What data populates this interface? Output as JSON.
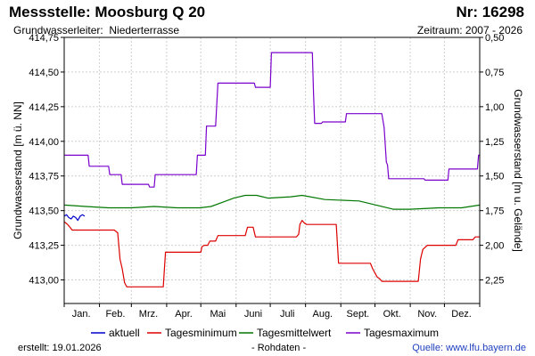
{
  "header": {
    "title": "Messstelle: Moosburg Q 20",
    "number": "Nr: 16298",
    "aquifer_label": "Grundwasserleiter:",
    "aquifer_value": "Niederterrasse",
    "period": "Zeitraum: 2007 - 2026"
  },
  "footer": {
    "created": "erstellt:  19.01.2026",
    "rawdata": "- Rohdaten -",
    "source_label": "Quelle:",
    "source_url": "www.lfu.bayern.de"
  },
  "chart_data": {
    "type": "line",
    "title": "",
    "xlabel": "",
    "ylabel": "Grundwasserstand [m ü. NN]",
    "ylabel_right": "Grundwasserstand [m u. Gelände]",
    "x_unit": "day of year",
    "xlim": [
      1,
      366
    ],
    "ylim": [
      412.83,
      414.75
    ],
    "ylim_right": [
      2.42,
      0.5
    ],
    "x_ticks": [
      {
        "label": "Jan.",
        "x": 16
      },
      {
        "label": "Feb.",
        "x": 46
      },
      {
        "label": "Mrz.",
        "x": 75
      },
      {
        "label": "Apr.",
        "x": 106
      },
      {
        "label": "Mai",
        "x": 136
      },
      {
        "label": "Juni",
        "x": 167
      },
      {
        "label": "Juli",
        "x": 197
      },
      {
        "label": "Aug.",
        "x": 228
      },
      {
        "label": "Sept.",
        "x": 259
      },
      {
        "label": "Okt.",
        "x": 289
      },
      {
        "label": "Nov.",
        "x": 320
      },
      {
        "label": "Dez.",
        "x": 350
      }
    ],
    "month_boundaries": [
      1,
      32,
      60,
      91,
      121,
      152,
      182,
      213,
      244,
      274,
      305,
      335,
      366
    ],
    "y_ticks_left": [
      413.0,
      413.25,
      413.5,
      413.75,
      414.0,
      414.25,
      414.5,
      414.75
    ],
    "y_tick_labels_left": [
      "413,00",
      "413,25",
      "413,50",
      "413,75",
      "414,00",
      "414,25",
      "414,50",
      "414,75"
    ],
    "y_ticks_right": [
      2.25,
      2.0,
      1.75,
      1.5,
      1.25,
      1.0,
      0.75,
      0.5
    ],
    "y_tick_labels_right": [
      "2,25",
      "2,00",
      "1,75",
      "1,50",
      "1,25",
      "1,00",
      "0,75",
      "0,50"
    ],
    "grid": true,
    "legend_position": "bottom",
    "series": [
      {
        "name": "aktuell",
        "color": "#0000cc",
        "points": [
          [
            1,
            413.46
          ],
          [
            3,
            413.47
          ],
          [
            5,
            413.45
          ],
          [
            7,
            413.44
          ],
          [
            9,
            413.46
          ],
          [
            11,
            413.45
          ],
          [
            13,
            413.43
          ],
          [
            15,
            413.46
          ],
          [
            17,
            413.47
          ],
          [
            19,
            413.46
          ]
        ]
      },
      {
        "name": "Tagesminimum",
        "color": "#dd0000",
        "points": [
          [
            1,
            413.42
          ],
          [
            4,
            413.4
          ],
          [
            6,
            413.38
          ],
          [
            8,
            413.36
          ],
          [
            45,
            413.36
          ],
          [
            48,
            413.34
          ],
          [
            50,
            413.15
          ],
          [
            52,
            413.08
          ],
          [
            54,
            412.98
          ],
          [
            56,
            412.95
          ],
          [
            88,
            412.95
          ],
          [
            90,
            413.2
          ],
          [
            121,
            413.2
          ],
          [
            122,
            413.24
          ],
          [
            124,
            413.25
          ],
          [
            127,
            413.25
          ],
          [
            129,
            413.28
          ],
          [
            134,
            413.28
          ],
          [
            136,
            413.32
          ],
          [
            160,
            413.32
          ],
          [
            162,
            413.38
          ],
          [
            167,
            413.38
          ],
          [
            169,
            413.31
          ],
          [
            205,
            413.31
          ],
          [
            207,
            413.33
          ],
          [
            208,
            413.4
          ],
          [
            210,
            413.43
          ],
          [
            212,
            413.41
          ],
          [
            214,
            413.4
          ],
          [
            240,
            413.4
          ],
          [
            242,
            413.12
          ],
          [
            270,
            413.12
          ],
          [
            272,
            413.08
          ],
          [
            274,
            413.05
          ],
          [
            276,
            413.02
          ],
          [
            278,
            413.01
          ],
          [
            280,
            412.99
          ],
          [
            312,
            412.99
          ],
          [
            314,
            413.15
          ],
          [
            316,
            413.22
          ],
          [
            320,
            413.25
          ],
          [
            345,
            413.25
          ],
          [
            347,
            413.29
          ],
          [
            360,
            413.29
          ],
          [
            362,
            413.31
          ],
          [
            366,
            413.31
          ]
        ]
      },
      {
        "name": "Tagesmittelwert",
        "color": "#007700",
        "points": [
          [
            1,
            413.54
          ],
          [
            20,
            413.53
          ],
          [
            40,
            413.52
          ],
          [
            60,
            413.52
          ],
          [
            80,
            413.53
          ],
          [
            100,
            413.52
          ],
          [
            120,
            413.52
          ],
          [
            130,
            413.53
          ],
          [
            140,
            413.56
          ],
          [
            150,
            413.59
          ],
          [
            160,
            413.61
          ],
          [
            170,
            413.61
          ],
          [
            180,
            413.59
          ],
          [
            200,
            413.6
          ],
          [
            210,
            413.61
          ],
          [
            230,
            413.58
          ],
          [
            260,
            413.57
          ],
          [
            275,
            413.54
          ],
          [
            290,
            413.51
          ],
          [
            305,
            413.51
          ],
          [
            330,
            413.52
          ],
          [
            350,
            413.52
          ],
          [
            366,
            413.54
          ]
        ]
      },
      {
        "name": "Tagesmaximum",
        "color": "#7a00cc",
        "points": [
          [
            1,
            413.9
          ],
          [
            22,
            413.9
          ],
          [
            23,
            413.82
          ],
          [
            40,
            413.82
          ],
          [
            41,
            413.76
          ],
          [
            51,
            413.76
          ],
          [
            52,
            413.69
          ],
          [
            75,
            413.69
          ],
          [
            76,
            413.67
          ],
          [
            80,
            413.67
          ],
          [
            81,
            413.76
          ],
          [
            117,
            413.76
          ],
          [
            118,
            413.9
          ],
          [
            125,
            413.9
          ],
          [
            126,
            414.11
          ],
          [
            134,
            414.11
          ],
          [
            136,
            414.42
          ],
          [
            168,
            414.42
          ],
          [
            169,
            414.39
          ],
          [
            182,
            414.39
          ],
          [
            183,
            414.64
          ],
          [
            219,
            414.64
          ],
          [
            220,
            414.35
          ],
          [
            221,
            414.13
          ],
          [
            227,
            414.13
          ],
          [
            228,
            414.14
          ],
          [
            248,
            414.14
          ],
          [
            249,
            414.2
          ],
          [
            280,
            414.2
          ],
          [
            282,
            414.1
          ],
          [
            284,
            413.85
          ],
          [
            285,
            413.83
          ],
          [
            286,
            413.73
          ],
          [
            317,
            413.73
          ],
          [
            318,
            413.72
          ],
          [
            338,
            413.72
          ],
          [
            339,
            413.8
          ],
          [
            364,
            413.8
          ],
          [
            365,
            413.9
          ],
          [
            366,
            413.9
          ]
        ]
      }
    ]
  }
}
